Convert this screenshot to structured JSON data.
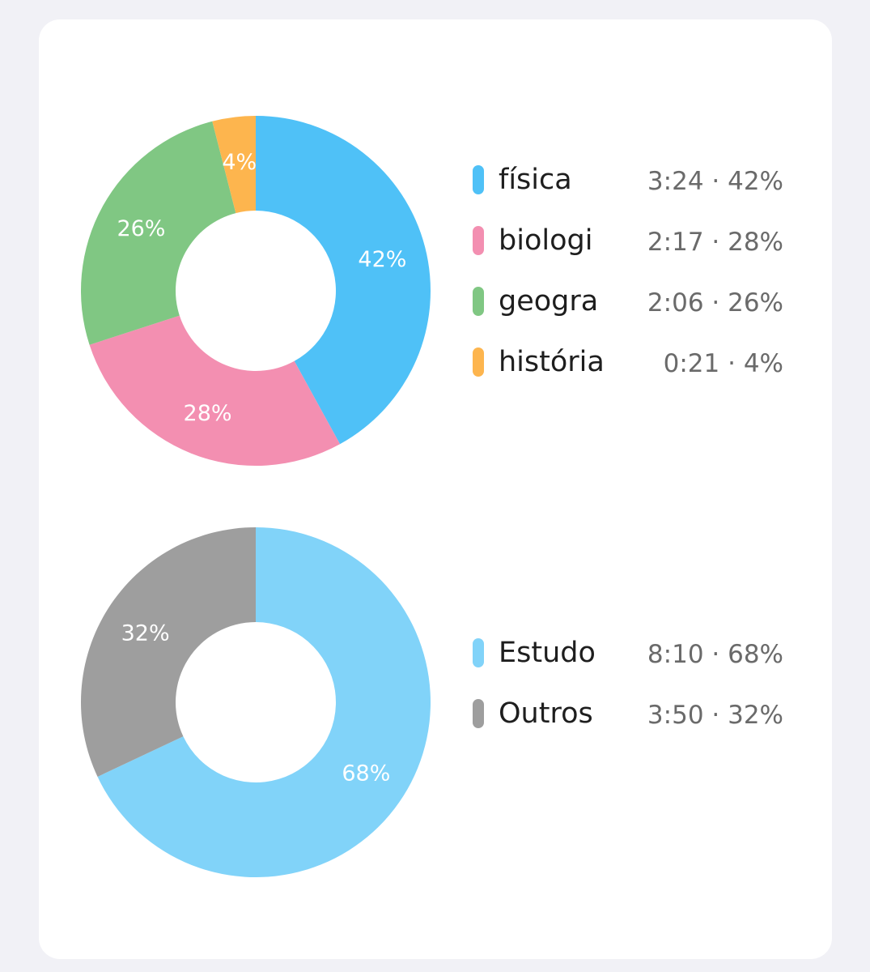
{
  "chart_data": [
    {
      "type": "pie",
      "variant": "donut",
      "labels": [
        "física",
        "biologi",
        "geogra",
        "história"
      ],
      "values": [
        42,
        28,
        26,
        4
      ],
      "slice_labels": [
        "42%",
        "28%",
        "26%",
        "4%"
      ],
      "colors": [
        "#4fc1f7",
        "#f38fb1",
        "#80c783",
        "#fdb54e"
      ],
      "legend": [
        {
          "name": "física",
          "value": "3:24 · 42%",
          "color": "#4fc1f7"
        },
        {
          "name": "biologi",
          "value": "2:17 · 28%",
          "color": "#f38fb1"
        },
        {
          "name": "geogra",
          "value": "2:06 · 26%",
          "color": "#80c783"
        },
        {
          "name": "história",
          "value": "0:21 · 4%",
          "color": "#fdb54e"
        }
      ],
      "legend_position": "right"
    },
    {
      "type": "pie",
      "variant": "donut",
      "labels": [
        "Estudo",
        "Outros"
      ],
      "values": [
        68,
        32
      ],
      "slice_labels": [
        "68%",
        "32%"
      ],
      "colors": [
        "#81d3f9",
        "#9e9e9e"
      ],
      "legend": [
        {
          "name": "Estudo",
          "value": "8:10 · 68%",
          "color": "#81d3f9"
        },
        {
          "name": "Outros",
          "value": "3:50 · 32%",
          "color": "#9e9e9e"
        }
      ],
      "legend_position": "right"
    }
  ]
}
